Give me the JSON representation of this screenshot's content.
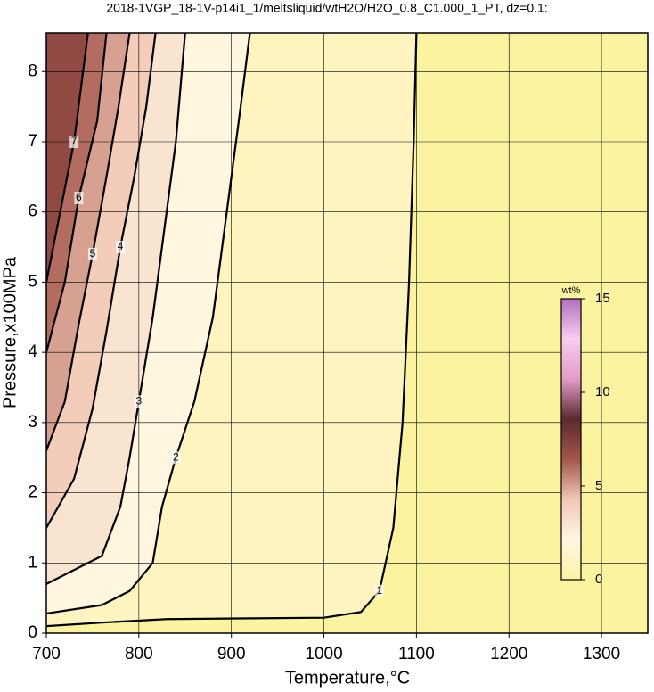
{
  "chart_data": {
    "type": "contour",
    "title": "2018-1VGP_18-1V-p14i1_1/meltsliquid/wtH2O/H2O_0.8_C1.000_1_PT, dz=0.1:",
    "x_label": "Temperature,°C",
    "y_label": "Pressure,x100MPa",
    "xlim": [
      700,
      1350
    ],
    "ylim": [
      0,
      8.55
    ],
    "xticks": [
      700,
      800,
      900,
      1000,
      1100,
      1200,
      1300
    ],
    "yticks": [
      0,
      1,
      2,
      3,
      4,
      5,
      6,
      7,
      8
    ],
    "grid": true,
    "colorbar": {
      "label": "wt%",
      "lim": [
        0,
        15
      ],
      "ticks": [
        0,
        5,
        10,
        15
      ],
      "colormap": [
        "#fbf3a0",
        "#fff6e4",
        "#f1c7b4",
        "#a3564b",
        "#5a2a2e",
        "#e49bc6",
        "#f6cdf0",
        "#b46fc0"
      ]
    },
    "series": [
      {
        "name": "1",
        "x": [
          700,
          760,
          830,
          1000,
          1040,
          1060,
          1075,
          1085,
          1092,
          1097,
          1100
        ],
        "y": [
          0.1,
          0.15,
          0.2,
          0.22,
          0.3,
          0.6,
          1.5,
          3,
          5,
          7,
          8.55
        ]
      },
      {
        "name": "2",
        "x": [
          700,
          760,
          790,
          815,
          825,
          840,
          860,
          880,
          895,
          910,
          920
        ],
        "y": [
          0.28,
          0.4,
          0.6,
          1,
          1.8,
          2.5,
          3.3,
          4.5,
          6,
          7.5,
          8.55
        ]
      },
      {
        "name": "3",
        "x": [
          700,
          760,
          780,
          790,
          800,
          815,
          830,
          840,
          850
        ],
        "y": [
          0.7,
          1.1,
          1.8,
          2.5,
          3.3,
          4.5,
          6,
          7,
          8.55
        ]
      },
      {
        "name": "4",
        "x": [
          700,
          730,
          750,
          765,
          780,
          795,
          808,
          818
        ],
        "y": [
          1.5,
          2.2,
          3.2,
          4.3,
          5.5,
          6.5,
          7.5,
          8.55
        ]
      },
      {
        "name": "5",
        "x": [
          700,
          720,
          735,
          750,
          765,
          778,
          790
        ],
        "y": [
          2.6,
          3.3,
          4.4,
          5.4,
          6.5,
          7.5,
          8.55
        ]
      },
      {
        "name": "6",
        "x": [
          700,
          720,
          735,
          755,
          765
        ],
        "y": [
          4,
          5,
          6.2,
          7.3,
          8.55
        ]
      },
      {
        "name": "7",
        "x": [
          700,
          715,
          730,
          745
        ],
        "y": [
          5,
          6,
          7,
          8.55
        ]
      }
    ]
  }
}
